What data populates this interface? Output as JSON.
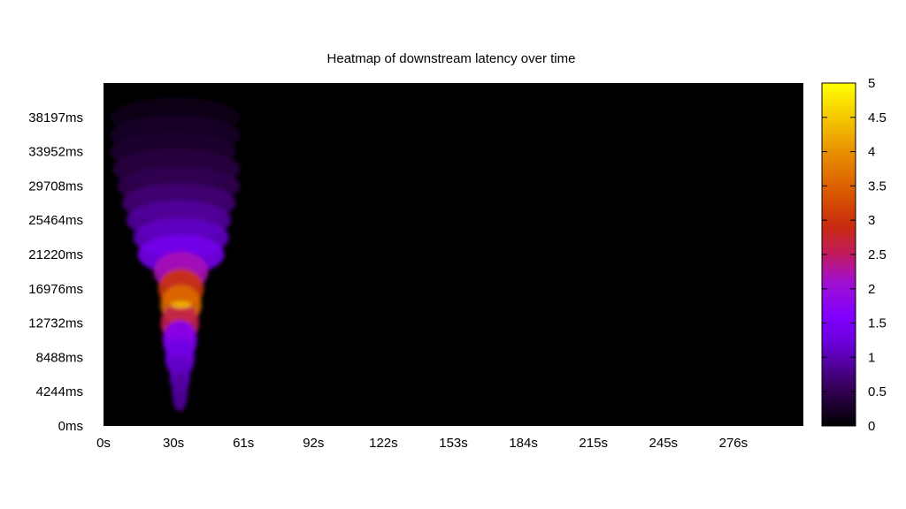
{
  "chart_data": {
    "type": "heatmap",
    "title": "Heatmap of downstream latency over time",
    "xlabel": "",
    "ylabel": "",
    "x_tick_labels": [
      "0s",
      "30s",
      "61s",
      "92s",
      "122s",
      "153s",
      "184s",
      "215s",
      "245s",
      "276s"
    ],
    "y_tick_labels": [
      "0ms",
      "4244ms",
      "8488ms",
      "12732ms",
      "16976ms",
      "21220ms",
      "25464ms",
      "29708ms",
      "33952ms",
      "38197ms"
    ],
    "x_ticks_s": [
      0,
      30.7,
      61.4,
      92.1,
      122.8,
      153.5,
      184.2,
      214.9,
      245.6,
      276.3
    ],
    "y_ticks_ms": [
      0,
      4244,
      8488,
      12732,
      16976,
      21220,
      25464,
      29708,
      33952,
      38197
    ],
    "xlim_s": [
      0,
      307
    ],
    "ylim_ms": [
      0,
      42441
    ],
    "colorbar": {
      "min": 0,
      "max": 5,
      "tick_labels": [
        "0",
        "0.5",
        "1",
        "1.5",
        "2",
        "2.5",
        "3",
        "3.5",
        "4",
        "4.5",
        "5"
      ],
      "palette": [
        "#000000",
        "#7b00ff",
        "#c2261f",
        "#e07800",
        "#ffff00"
      ]
    },
    "values_description": "z values in colorbar units over (time s, latency ms)",
    "heat_regions": [
      {
        "t_start_s": 3,
        "t_end_s": 60,
        "latency_ms": 38200,
        "value": 0.15
      },
      {
        "t_start_s": 3,
        "t_end_s": 60,
        "latency_ms": 36000,
        "value": 0.25
      },
      {
        "t_start_s": 3,
        "t_end_s": 58,
        "latency_ms": 33952,
        "value": 0.3
      },
      {
        "t_start_s": 4,
        "t_end_s": 60,
        "latency_ms": 31800,
        "value": 0.4
      },
      {
        "t_start_s": 6,
        "t_end_s": 60,
        "latency_ms": 29708,
        "value": 0.5
      },
      {
        "t_start_s": 8,
        "t_end_s": 58,
        "latency_ms": 27600,
        "value": 0.7
      },
      {
        "t_start_s": 10,
        "t_end_s": 56,
        "latency_ms": 25464,
        "value": 0.9
      },
      {
        "t_start_s": 13,
        "t_end_s": 55,
        "latency_ms": 23300,
        "value": 1.1
      },
      {
        "t_start_s": 15,
        "t_end_s": 53,
        "latency_ms": 21220,
        "value": 1.4
      },
      {
        "t_start_s": 22,
        "t_end_s": 46,
        "latency_ms": 19100,
        "value": 2.2
      },
      {
        "t_start_s": 24,
        "t_end_s": 44,
        "latency_ms": 16976,
        "value": 3.0
      },
      {
        "t_start_s": 25,
        "t_end_s": 43,
        "latency_ms": 15000,
        "value": 3.6
      },
      {
        "t_start_s": 25,
        "t_end_s": 42,
        "latency_ms": 12732,
        "value": 2.6
      },
      {
        "t_start_s": 26,
        "t_end_s": 41,
        "latency_ms": 10600,
        "value": 1.7
      },
      {
        "t_start_s": 27,
        "t_end_s": 40,
        "latency_ms": 8488,
        "value": 1.3
      },
      {
        "t_start_s": 29,
        "t_end_s": 38,
        "latency_ms": 6300,
        "value": 1.1
      },
      {
        "t_start_s": 30,
        "t_end_s": 37,
        "latency_ms": 4244,
        "value": 0.9
      }
    ],
    "grid": false,
    "legend": "colorbar right"
  }
}
